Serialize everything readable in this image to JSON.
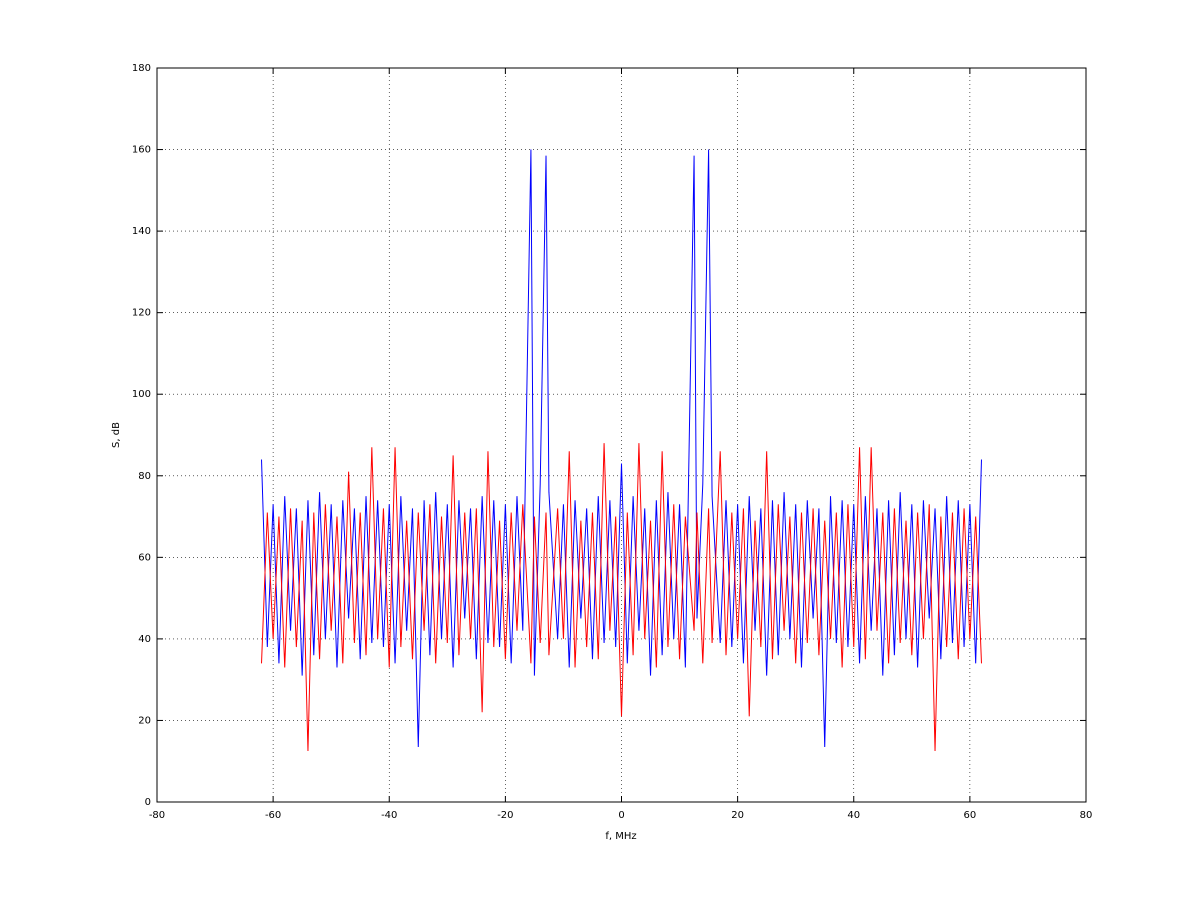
{
  "chart_data": {
    "type": "line",
    "xlabel": "f, MHz",
    "ylabel": "S, dB",
    "xlim": [
      -80,
      80
    ],
    "xticks": [
      -80,
      -60,
      -40,
      -20,
      0,
      20,
      40,
      60,
      80
    ],
    "ylim": [
      0,
      180
    ],
    "yticks": [
      0,
      20,
      40,
      60,
      80,
      100,
      120,
      140,
      160,
      180
    ],
    "grid": true,
    "x": [
      -62,
      -61,
      -60,
      -59,
      -58,
      -57,
      -56,
      -55,
      -54,
      -53,
      -52,
      -51,
      -50,
      -49,
      -48,
      -47,
      -46,
      -45,
      -44,
      -43,
      -42,
      -41,
      -40,
      -39,
      -38,
      -37,
      -36,
      -35,
      -34,
      -33,
      -32,
      -31,
      -30,
      -29,
      -28,
      -27,
      -26,
      -25,
      -24,
      -23,
      -22,
      -21,
      -20,
      -19,
      -18,
      -17,
      -15.6,
      -15,
      -14,
      -13,
      -12.5,
      -11,
      -10,
      -9,
      -8,
      -7,
      -6,
      -5,
      -4,
      -3,
      -2,
      -1,
      0,
      1,
      2,
      3,
      4,
      5,
      6,
      7,
      8,
      9,
      10,
      11,
      12.5,
      13,
      14,
      15,
      15.6,
      17,
      18,
      19,
      20,
      21,
      22,
      23,
      24,
      25,
      26,
      27,
      28,
      29,
      30,
      31,
      32,
      33,
      34,
      35,
      36,
      37,
      38,
      39,
      40,
      41,
      42,
      43,
      44,
      45,
      46,
      47,
      48,
      49,
      50,
      51,
      52,
      53,
      54,
      55,
      56,
      57,
      58,
      59,
      60,
      61,
      62
    ],
    "series": [
      {
        "color": "#0000ff",
        "values": [
          84,
          38,
          73,
          34,
          75,
          42,
          72,
          31,
          74,
          36,
          76,
          40,
          73,
          33,
          74,
          45,
          72,
          35,
          75,
          39,
          74,
          38,
          73,
          34,
          75,
          42,
          72,
          13.5,
          74,
          36,
          76,
          40,
          73,
          33,
          74,
          45,
          72,
          35,
          75,
          39,
          74,
          38,
          73,
          34,
          75,
          42,
          160,
          31,
          78,
          158.5,
          76,
          40,
          73,
          33,
          74,
          45,
          72,
          35,
          75,
          39,
          74,
          38,
          83,
          34,
          75,
          42,
          72,
          31,
          74,
          36,
          76,
          40,
          73,
          33,
          158.5,
          45,
          78,
          160,
          75,
          39,
          74,
          38,
          73,
          34,
          75,
          42,
          72,
          31,
          74,
          36,
          76,
          40,
          73,
          33,
          74,
          45,
          72,
          13.5,
          75,
          39,
          74,
          38,
          73,
          34,
          75,
          42,
          72,
          31,
          74,
          36,
          76,
          40,
          73,
          33,
          74,
          45,
          72,
          35,
          75,
          39,
          74,
          38,
          73,
          34,
          84
        ]
      },
      {
        "color": "#ff0000",
        "values": [
          34,
          71,
          40,
          70,
          33,
          72,
          38,
          69,
          12.5,
          71,
          35,
          73,
          42,
          70,
          34,
          81,
          39,
          71,
          36,
          87,
          40,
          72,
          33,
          87,
          38,
          69,
          35,
          71,
          42,
          73,
          34,
          70,
          39,
          85,
          36,
          71,
          40,
          72,
          22,
          86,
          38,
          69,
          35,
          71,
          42,
          73,
          34,
          70,
          39,
          71,
          36,
          72,
          40,
          86,
          33,
          69,
          38,
          71,
          35,
          88,
          42,
          70,
          21,
          71,
          36,
          88,
          40,
          69,
          33,
          86,
          38,
          73,
          35,
          70,
          42,
          71,
          34,
          72,
          39,
          86,
          36,
          71,
          40,
          72,
          21,
          69,
          38,
          86,
          35,
          73,
          42,
          70,
          34,
          71,
          39,
          72,
          36,
          69,
          40,
          71,
          33,
          73,
          38,
          87,
          35,
          87,
          42,
          71,
          34,
          72,
          39,
          69,
          36,
          71,
          40,
          73,
          12.5,
          70,
          38,
          71,
          35,
          72,
          40,
          70,
          34
        ]
      }
    ]
  }
}
